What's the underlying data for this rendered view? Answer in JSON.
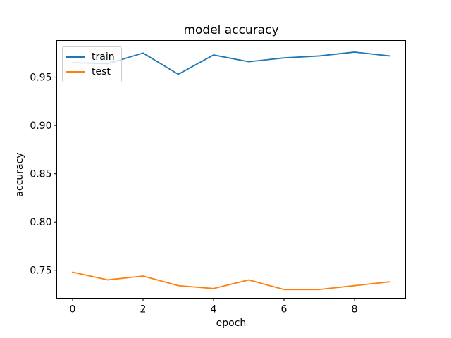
{
  "chart_data": {
    "type": "line",
    "title": "model accuracy",
    "xlabel": "epoch",
    "ylabel": "accuracy",
    "x": [
      0,
      1,
      2,
      3,
      4,
      5,
      6,
      7,
      8,
      9
    ],
    "series": [
      {
        "name": "train",
        "color": "#1f77b4",
        "values": [
          0.965,
          0.964,
          0.975,
          0.953,
          0.973,
          0.966,
          0.97,
          0.972,
          0.976,
          0.972
        ]
      },
      {
        "name": "test",
        "color": "#ff7f0e",
        "values": [
          0.748,
          0.74,
          0.744,
          0.734,
          0.731,
          0.74,
          0.73,
          0.73,
          0.734,
          0.738
        ]
      }
    ],
    "x_ticks": [
      0,
      2,
      4,
      6,
      8
    ],
    "y_ticks": [
      0.75,
      0.8,
      0.85,
      0.9,
      0.95
    ],
    "xlim": [
      -0.45,
      9.45
    ],
    "ylim": [
      0.721,
      0.988
    ],
    "legend_position": "upper left",
    "grid": false,
    "background_color": "#ffffff",
    "text_color": "#000000",
    "spine_color": "#000000",
    "legend_border_color": "#cccccc"
  }
}
